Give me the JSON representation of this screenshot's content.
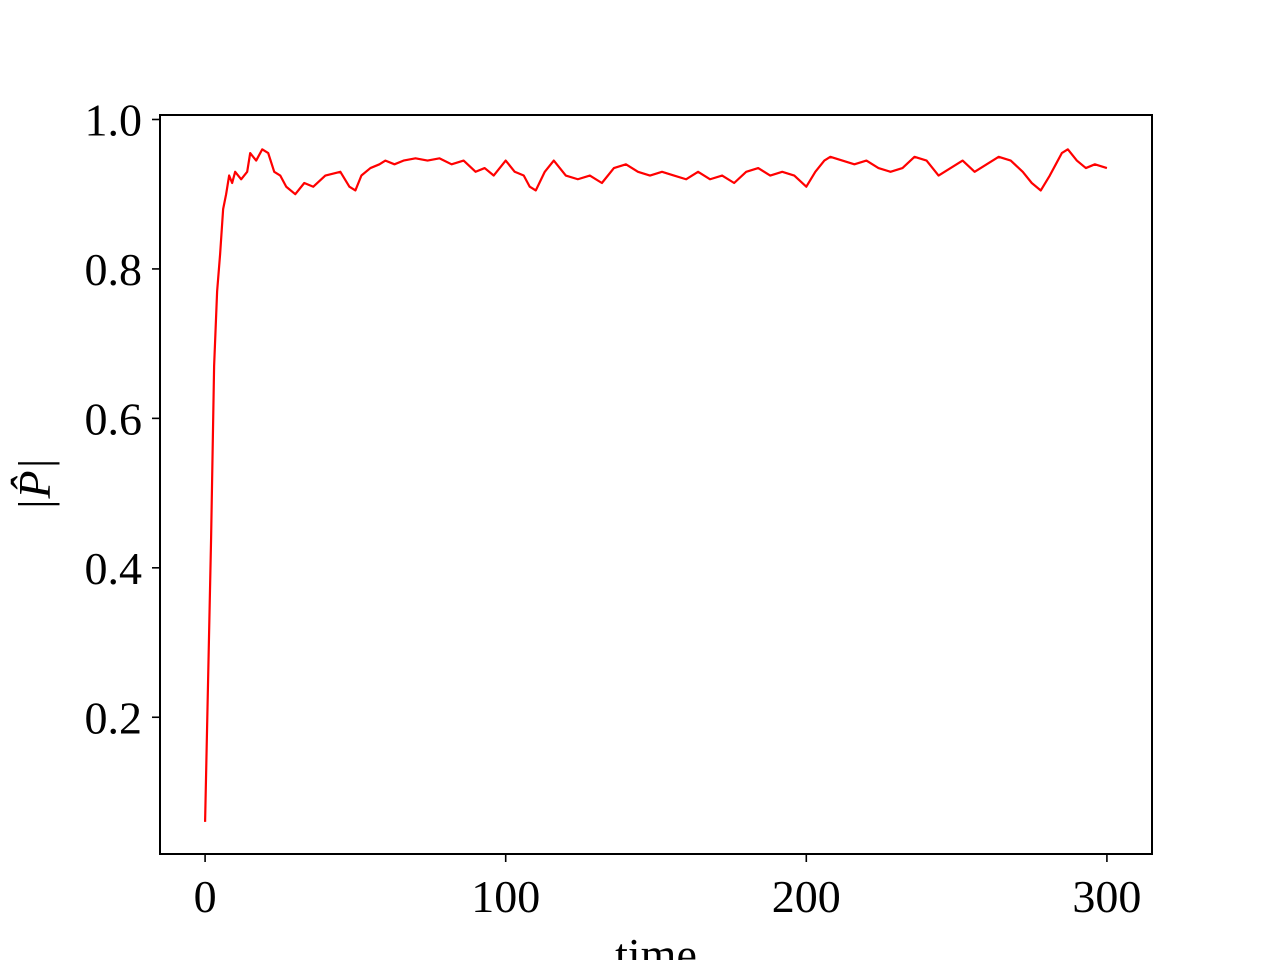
{
  "chart_data": {
    "type": "line",
    "title": "",
    "xlabel": "time",
    "ylabel": "|P̂|",
    "xlim": [
      -15,
      315
    ],
    "ylim": [
      0.017,
      1.006
    ],
    "xticks": [
      0,
      100,
      200,
      300
    ],
    "xtick_labels": [
      "0",
      "100",
      "200",
      "300"
    ],
    "yticks": [
      0.2,
      0.4,
      0.6,
      0.8,
      1.0
    ],
    "ytick_labels": [
      "0.2",
      "0.4",
      "0.6",
      "0.8",
      "1.0"
    ],
    "grid": false,
    "legend": null,
    "series": [
      {
        "name": "|P|",
        "color": "#ff0000",
        "x": [
          0,
          1,
          2,
          3,
          4,
          5,
          6,
          7,
          8,
          9,
          10,
          12,
          14,
          15,
          17,
          19,
          21,
          23,
          25,
          27,
          30,
          33,
          36,
          40,
          45,
          48,
          50,
          52,
          55,
          58,
          60,
          63,
          66,
          70,
          74,
          78,
          82,
          86,
          90,
          93,
          96,
          100,
          103,
          106,
          108,
          110,
          113,
          116,
          120,
          124,
          128,
          132,
          136,
          140,
          144,
          148,
          152,
          156,
          160,
          164,
          168,
          172,
          176,
          180,
          184,
          188,
          192,
          196,
          200,
          203,
          206,
          208,
          212,
          216,
          220,
          224,
          228,
          232,
          236,
          240,
          244,
          248,
          252,
          256,
          260,
          264,
          268,
          272,
          275,
          278,
          281,
          283,
          285,
          287,
          290,
          293,
          296,
          300
        ],
        "y": [
          0.06,
          0.25,
          0.44,
          0.67,
          0.77,
          0.82,
          0.88,
          0.9,
          0.925,
          0.915,
          0.93,
          0.92,
          0.93,
          0.955,
          0.945,
          0.96,
          0.955,
          0.93,
          0.925,
          0.91,
          0.9,
          0.915,
          0.91,
          0.925,
          0.93,
          0.91,
          0.905,
          0.925,
          0.935,
          0.94,
          0.945,
          0.94,
          0.945,
          0.948,
          0.945,
          0.948,
          0.94,
          0.945,
          0.93,
          0.935,
          0.925,
          0.945,
          0.93,
          0.925,
          0.91,
          0.905,
          0.93,
          0.945,
          0.925,
          0.92,
          0.925,
          0.915,
          0.935,
          0.94,
          0.93,
          0.925,
          0.93,
          0.925,
          0.92,
          0.93,
          0.92,
          0.925,
          0.915,
          0.93,
          0.935,
          0.925,
          0.93,
          0.925,
          0.91,
          0.93,
          0.945,
          0.95,
          0.945,
          0.94,
          0.945,
          0.935,
          0.93,
          0.935,
          0.95,
          0.945,
          0.925,
          0.935,
          0.945,
          0.93,
          0.94,
          0.95,
          0.945,
          0.93,
          0.915,
          0.905,
          0.925,
          0.94,
          0.955,
          0.96,
          0.945,
          0.935,
          0.94,
          0.935
        ]
      }
    ]
  }
}
